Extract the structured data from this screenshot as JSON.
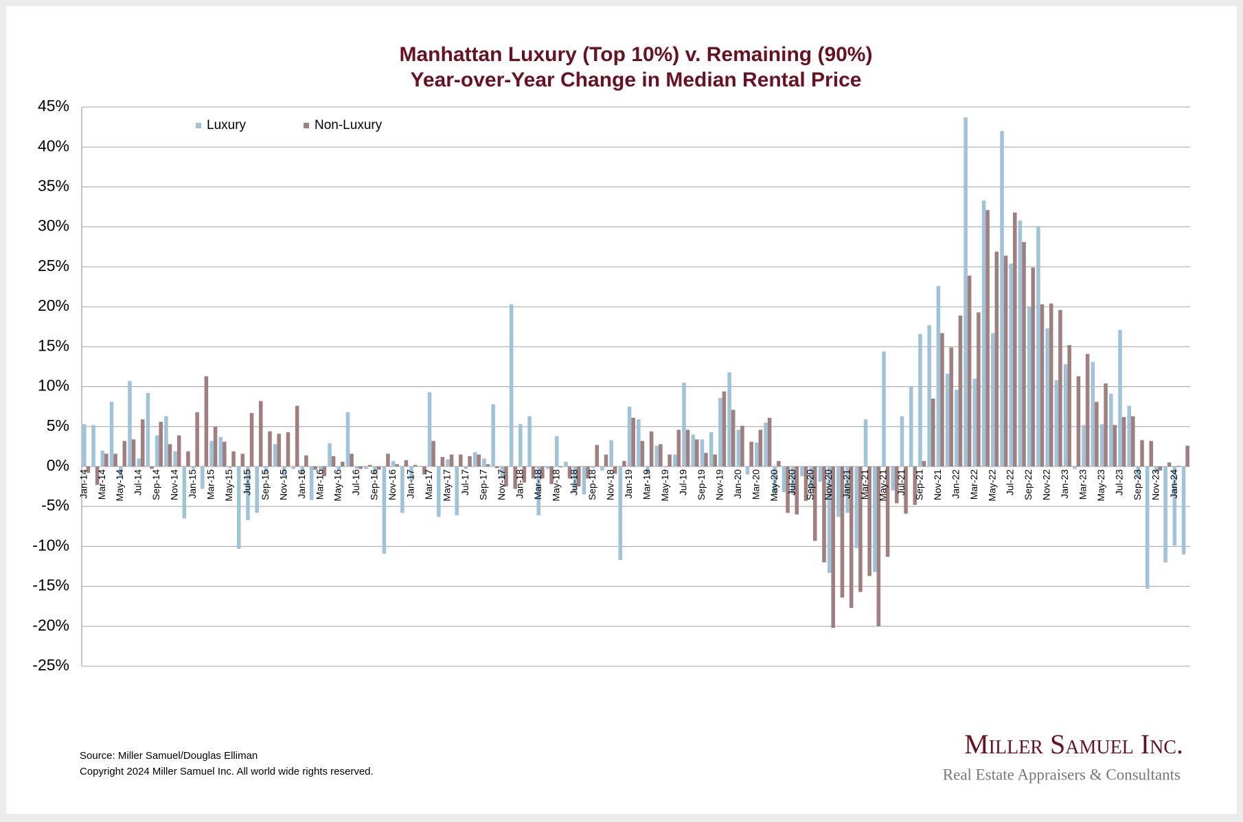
{
  "chart_data": {
    "type": "bar",
    "title": "Manhattan Luxury (Top 10%) v. Remaining (90%)",
    "subtitle": "Year-over-Year Change in Median Rental Price",
    "source": "Source: Miller Samuel/Douglas Elliman",
    "copyright": "Copyright 2024 Miller Samuel Inc.  All world wide rights reserved.",
    "logo_name": "Miller Samuel Inc.",
    "logo_tagline": "Real Estate Appraisers & Consultants",
    "categories": [
      "Jan-14",
      null,
      "Mar-14",
      null,
      "May-14",
      null,
      "Jul-14",
      null,
      "Sep-14",
      null,
      "Nov-14",
      null,
      "Jan-15",
      null,
      "Mar-15",
      null,
      "May-15",
      null,
      "Jul-15",
      null,
      "Sep-15",
      null,
      "Nov-15",
      null,
      "Jan-16",
      null,
      "Mar-16",
      null,
      "May-16",
      null,
      "Jul-16",
      null,
      "Sep-16",
      null,
      "Nov-16",
      null,
      "Jan-17",
      null,
      "Mar-17",
      null,
      "May-17",
      null,
      "Jul-17",
      null,
      "Sep-17",
      null,
      "Nov-17",
      null,
      "Jan-18",
      null,
      "Mar-18",
      null,
      "May-18",
      null,
      "Jul-18",
      null,
      "Sep-18",
      null,
      "Nov-18",
      null,
      "Jan-19",
      null,
      "Mar-19",
      null,
      "May-19",
      null,
      "Jul-19",
      null,
      "Sep-19",
      null,
      "Nov-19",
      null,
      "Jan-20",
      null,
      "Mar-20",
      null,
      "May-20",
      null,
      "Jul-20",
      null,
      "Sep-20",
      null,
      "Nov-20",
      null,
      "Jan-21",
      null,
      "Mar-21",
      null,
      "May-21",
      null,
      "Jul-21",
      null,
      "Sep-21",
      null,
      "Nov-21",
      null,
      "Jan-22",
      null,
      "Mar-22",
      null,
      "May-22",
      null,
      "Jul-22",
      null,
      "Sep-22",
      null,
      "Nov-22",
      null,
      "Jan-23",
      null,
      "Mar-23",
      null,
      "May-23",
      null,
      "Jul-23",
      null,
      "Sep-23",
      null,
      "Nov-23",
      null,
      "Jan-24",
      null
    ],
    "series": [
      {
        "name": "Luxury",
        "color": "#9fc4da",
        "values": [
          5.3,
          5.2,
          2.0,
          8.1,
          -1.2,
          10.7,
          1.0,
          9.2,
          3.9,
          6.3,
          1.9,
          -6.5,
          -0.3,
          -2.8,
          3.2,
          3.7,
          -0.2,
          -10.3,
          -6.7,
          -5.8,
          -1.0,
          2.8,
          -1.2,
          -0.3,
          -1.0,
          -4.2,
          -0.5,
          2.9,
          -0.4,
          6.8,
          -0.3,
          -0.3,
          -1.0,
          -10.9,
          0.7,
          -5.8,
          -1.8,
          0.1,
          9.3,
          -6.3,
          0.9,
          -6.1,
          -0.3,
          1.8,
          1.0,
          7.8,
          -1.5,
          20.3,
          5.3,
          6.3,
          -6.1,
          -0.3,
          3.8,
          0.6,
          -3.2,
          -3.5,
          -0.2,
          -0.5,
          3.3,
          -11.7,
          7.5,
          5.9,
          -1.0,
          2.6,
          -0.1,
          1.5,
          10.5,
          4.0,
          3.4,
          4.3,
          8.6,
          11.8,
          4.6,
          -1.0,
          3.0,
          5.5,
          -3.5,
          -3.2,
          -3.5,
          -1.2,
          -3.0,
          -1.9,
          -13.3,
          -6.3,
          -5.8,
          -10.2,
          5.9,
          -13.2,
          14.4,
          -3.0,
          6.3,
          10.0,
          16.6,
          17.7,
          22.6,
          11.6,
          9.6,
          43.7,
          11.0,
          33.3,
          16.7,
          42.0,
          25.4,
          30.8,
          20.0,
          30.1,
          17.3,
          10.8,
          12.8,
          -0.3,
          5.2,
          13.1,
          5.3,
          9.1,
          17.1,
          7.6,
          -1.5,
          -15.3,
          -0.8,
          -12.0,
          -9.9,
          -11.0
        ]
      },
      {
        "name": "Non-Luxury",
        "color": "#a27f7f",
        "values": [
          -0.8,
          -2.3,
          1.6,
          1.6,
          3.2,
          3.4,
          5.9,
          -0.3,
          5.6,
          2.8,
          3.9,
          1.9,
          6.8,
          11.3,
          5.0,
          3.1,
          1.9,
          1.6,
          6.7,
          8.2,
          4.4,
          4.1,
          4.3,
          7.6,
          1.4,
          -0.4,
          -1.2,
          1.3,
          0.6,
          1.6,
          -0.3,
          0.2,
          -0.4,
          1.6,
          0.3,
          0.8,
          0.2,
          -1.0,
          3.2,
          1.2,
          1.5,
          1.5,
          1.3,
          1.5,
          0.3,
          -0.2,
          -2.5,
          -2.8,
          -2.0,
          -1.5,
          -1.5,
          -2.2,
          -0.1,
          -1.5,
          -2.5,
          -1.5,
          2.7,
          1.5,
          -0.9,
          0.7,
          6.1,
          3.2,
          4.4,
          2.8,
          1.5,
          4.6,
          4.6,
          3.4,
          1.7,
          1.5,
          9.4,
          7.1,
          5.1,
          3.1,
          4.6,
          6.1,
          0.7,
          -5.8,
          -6.0,
          -4.3,
          -9.3,
          -12.0,
          -20.2,
          -16.4,
          -17.7,
          -15.7,
          -13.7,
          -20.0,
          -11.3,
          -4.6,
          -5.9,
          -4.8,
          0.7,
          8.5,
          16.7,
          14.9,
          18.9,
          23.9,
          19.3,
          32.1,
          26.9,
          26.4,
          31.8,
          28.1,
          24.9,
          20.3,
          20.4,
          19.6,
          15.2,
          11.3,
          14.1,
          8.1,
          10.4,
          5.2,
          6.2,
          6.3,
          3.3,
          3.2,
          -0.5,
          0.5,
          0.1,
          2.6
        ]
      }
    ],
    "ylim": [
      -25,
      45
    ],
    "yticks": [
      {
        "value": 45,
        "label": "45%"
      },
      {
        "value": 40,
        "label": "40%"
      },
      {
        "value": 35,
        "label": "35%"
      },
      {
        "value": 30,
        "label": "30%"
      },
      {
        "value": 25,
        "label": "25%"
      },
      {
        "value": 20,
        "label": "20%"
      },
      {
        "value": 15,
        "label": "15%"
      },
      {
        "value": 10,
        "label": "10%"
      },
      {
        "value": 5,
        "label": "5%"
      },
      {
        "value": 0,
        "label": "0%"
      },
      {
        "value": -5,
        "label": "-5%"
      },
      {
        "value": -10,
        "label": "-10%"
      },
      {
        "value": -15,
        "label": "-15%"
      },
      {
        "value": -20,
        "label": "-20%"
      },
      {
        "value": -25,
        "label": "-25%"
      }
    ],
    "grid": true,
    "legend": "top-left"
  }
}
